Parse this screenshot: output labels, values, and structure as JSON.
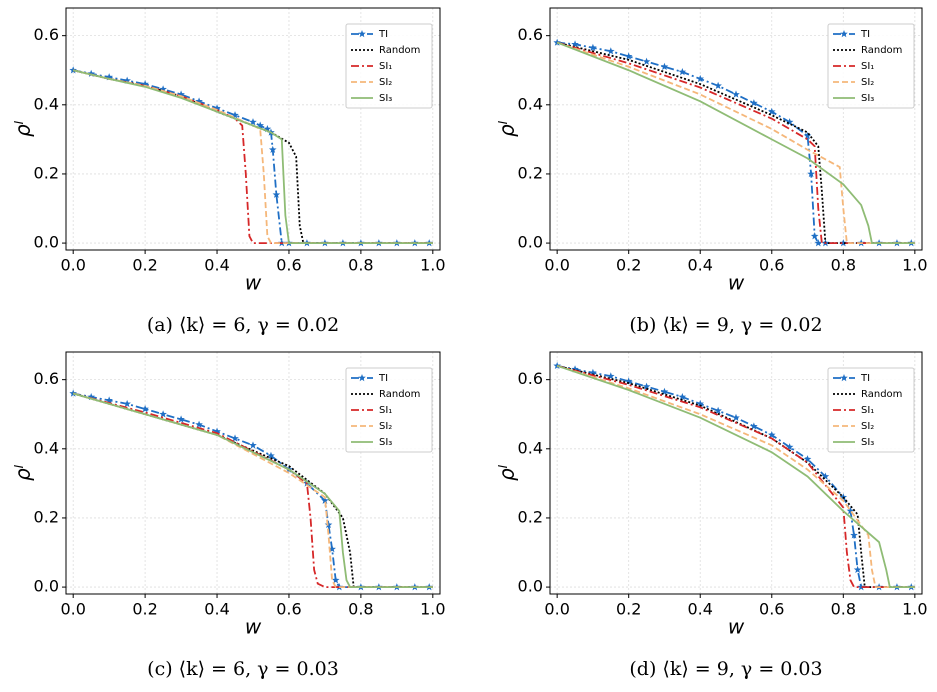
{
  "chart_data": [
    {
      "type": "line",
      "caption": "(a) ⟨k⟩ = 6, γ = 0.02",
      "xlabel": "w",
      "ylabel": "ρˡ",
      "xlim": [
        -0.02,
        1.02
      ],
      "ylim": [
        -0.02,
        0.68
      ],
      "xticks": [
        {
          "value": 0,
          "label": "0.0"
        },
        0.2,
        0.4,
        0.6,
        0.8,
        {
          "value": 1,
          "label": "1.0"
        }
      ],
      "yticks": [
        {
          "value": 0,
          "label": "0.0"
        },
        0.2,
        0.4,
        0.6
      ],
      "grid": true,
      "legend": "upper right",
      "series": [
        {
          "name": "TI",
          "color": "#1f6fc5",
          "style": "dashdot",
          "marker": "star",
          "x": [
            0,
            0.05,
            0.1,
            0.15,
            0.2,
            0.25,
            0.3,
            0.35,
            0.4,
            0.45,
            0.5,
            0.52,
            0.54,
            0.55,
            0.555,
            0.565,
            0.58,
            0.6,
            0.65,
            0.7,
            0.75,
            0.8,
            0.85,
            0.9,
            0.95,
            0.99
          ],
          "values": [
            0.5,
            0.49,
            0.48,
            0.47,
            0.46,
            0.445,
            0.43,
            0.41,
            0.39,
            0.37,
            0.35,
            0.34,
            0.33,
            0.32,
            0.27,
            0.14,
            0,
            0,
            0,
            0,
            0,
            0,
            0,
            0,
            0,
            0
          ]
        },
        {
          "name": "Random",
          "color": "#000000",
          "style": "dotted",
          "x": [
            0,
            0.1,
            0.2,
            0.3,
            0.4,
            0.5,
            0.55,
            0.6,
            0.62,
            0.63,
            0.64,
            1
          ],
          "values": [
            0.5,
            0.475,
            0.455,
            0.425,
            0.38,
            0.34,
            0.32,
            0.29,
            0.25,
            0.05,
            0,
            0
          ]
        },
        {
          "name": "SI₁",
          "color": "#d62728",
          "style": "dashdot",
          "x": [
            0,
            0.1,
            0.2,
            0.3,
            0.4,
            0.45,
            0.47,
            0.48,
            0.49,
            0.5,
            1
          ],
          "values": [
            0.5,
            0.475,
            0.455,
            0.425,
            0.385,
            0.36,
            0.34,
            0.2,
            0.02,
            0,
            0
          ]
        },
        {
          "name": "SI₂",
          "color": "#f5b77a",
          "style": "dashed",
          "x": [
            0,
            0.1,
            0.2,
            0.3,
            0.4,
            0.5,
            0.52,
            0.53,
            0.54,
            0.55,
            1
          ],
          "values": [
            0.5,
            0.475,
            0.455,
            0.425,
            0.385,
            0.34,
            0.33,
            0.2,
            0.02,
            0,
            0
          ]
        },
        {
          "name": "SI₃",
          "color": "#8fbc75",
          "style": "solid",
          "x": [
            0,
            0.1,
            0.2,
            0.3,
            0.4,
            0.5,
            0.55,
            0.58,
            0.59,
            0.6,
            1
          ],
          "values": [
            0.5,
            0.475,
            0.452,
            0.42,
            0.38,
            0.34,
            0.32,
            0.3,
            0.08,
            0,
            0
          ]
        }
      ]
    },
    {
      "type": "line",
      "caption": "(b) ⟨k⟩ = 9, γ = 0.02",
      "xlabel": "w",
      "ylabel": "ρˡ",
      "xlim": [
        -0.02,
        1.02
      ],
      "ylim": [
        -0.02,
        0.68
      ],
      "xticks": [
        {
          "value": 0,
          "label": "0.0"
        },
        0.2,
        0.4,
        0.6,
        0.8,
        {
          "value": 1,
          "label": "1.0"
        }
      ],
      "yticks": [
        {
          "value": 0,
          "label": "0.0"
        },
        0.2,
        0.4,
        0.6
      ],
      "grid": true,
      "legend": "upper right",
      "series": [
        {
          "name": "TI",
          "color": "#1f6fc5",
          "style": "dashdot",
          "marker": "star",
          "x": [
            0,
            0.05,
            0.1,
            0.15,
            0.2,
            0.25,
            0.3,
            0.35,
            0.4,
            0.45,
            0.5,
            0.55,
            0.6,
            0.65,
            0.7,
            0.71,
            0.72,
            0.73,
            0.75,
            0.8,
            0.85,
            0.9,
            0.95,
            0.99
          ],
          "values": [
            0.58,
            0.575,
            0.565,
            0.555,
            0.54,
            0.525,
            0.51,
            0.495,
            0.475,
            0.455,
            0.43,
            0.405,
            0.38,
            0.35,
            0.31,
            0.2,
            0.02,
            0,
            0,
            0,
            0,
            0,
            0,
            0
          ]
        },
        {
          "name": "Random",
          "color": "#000000",
          "style": "dotted",
          "x": [
            0,
            0.2,
            0.4,
            0.6,
            0.7,
            0.73,
            0.74,
            0.75,
            1
          ],
          "values": [
            0.58,
            0.53,
            0.46,
            0.37,
            0.32,
            0.28,
            0.15,
            0,
            0
          ]
        },
        {
          "name": "SI₁",
          "color": "#d62728",
          "style": "dashdot",
          "x": [
            0,
            0.2,
            0.4,
            0.6,
            0.7,
            0.72,
            0.73,
            0.74,
            1
          ],
          "values": [
            0.58,
            0.52,
            0.45,
            0.36,
            0.3,
            0.28,
            0.1,
            0,
            0
          ]
        },
        {
          "name": "SI₂",
          "color": "#f5b77a",
          "style": "dashed",
          "x": [
            0,
            0.2,
            0.4,
            0.6,
            0.7,
            0.79,
            0.8,
            0.81,
            1
          ],
          "values": [
            0.58,
            0.51,
            0.43,
            0.33,
            0.27,
            0.22,
            0.1,
            0,
            0
          ]
        },
        {
          "name": "SI₃",
          "color": "#8fbc75",
          "style": "solid",
          "x": [
            0,
            0.2,
            0.4,
            0.6,
            0.7,
            0.8,
            0.85,
            0.87,
            0.88,
            1
          ],
          "values": [
            0.58,
            0.5,
            0.41,
            0.3,
            0.245,
            0.17,
            0.11,
            0.05,
            0,
            0
          ]
        }
      ]
    },
    {
      "type": "line",
      "caption": "(c) ⟨k⟩ = 6, γ = 0.03",
      "xlabel": "w",
      "ylabel": "ρˡ",
      "xlim": [
        -0.02,
        1.02
      ],
      "ylim": [
        -0.02,
        0.68
      ],
      "xticks": [
        {
          "value": 0,
          "label": "0.0"
        },
        0.2,
        0.4,
        0.6,
        0.8,
        {
          "value": 1,
          "label": "1.0"
        }
      ],
      "yticks": [
        {
          "value": 0,
          "label": "0.0"
        },
        0.2,
        0.4,
        0.6
      ],
      "grid": true,
      "legend": "upper right",
      "series": [
        {
          "name": "TI",
          "color": "#1f6fc5",
          "style": "dashdot",
          "marker": "star",
          "x": [
            0,
            0.05,
            0.1,
            0.15,
            0.2,
            0.25,
            0.3,
            0.35,
            0.4,
            0.45,
            0.5,
            0.55,
            0.6,
            0.65,
            0.7,
            0.71,
            0.72,
            0.73,
            0.74,
            0.8,
            0.85,
            0.9,
            0.95,
            0.99
          ],
          "values": [
            0.56,
            0.55,
            0.54,
            0.53,
            0.515,
            0.5,
            0.485,
            0.47,
            0.45,
            0.43,
            0.41,
            0.38,
            0.34,
            0.3,
            0.25,
            0.18,
            0.11,
            0.02,
            0,
            0,
            0,
            0,
            0,
            0
          ]
        },
        {
          "name": "Random",
          "color": "#000000",
          "style": "dotted",
          "x": [
            0,
            0.2,
            0.4,
            0.6,
            0.7,
            0.75,
            0.77,
            0.78,
            1
          ],
          "values": [
            0.56,
            0.5,
            0.44,
            0.35,
            0.27,
            0.2,
            0.1,
            0,
            0
          ]
        },
        {
          "name": "SI₁",
          "color": "#d62728",
          "style": "dashdot",
          "x": [
            0,
            0.2,
            0.4,
            0.6,
            0.65,
            0.66,
            0.67,
            0.68,
            0.7,
            1
          ],
          "values": [
            0.56,
            0.505,
            0.445,
            0.34,
            0.3,
            0.2,
            0.05,
            0.01,
            0,
            0
          ]
        },
        {
          "name": "SI₂",
          "color": "#f5b77a",
          "style": "dashed",
          "x": [
            0,
            0.2,
            0.4,
            0.6,
            0.7,
            0.71,
            0.72,
            0.73,
            1
          ],
          "values": [
            0.56,
            0.5,
            0.44,
            0.33,
            0.26,
            0.15,
            0.02,
            0,
            0
          ]
        },
        {
          "name": "SI₃",
          "color": "#8fbc75",
          "style": "solid",
          "x": [
            0,
            0.2,
            0.4,
            0.6,
            0.7,
            0.74,
            0.75,
            0.76,
            0.77,
            1
          ],
          "values": [
            0.56,
            0.5,
            0.44,
            0.34,
            0.27,
            0.22,
            0.1,
            0.02,
            0,
            0
          ]
        }
      ]
    },
    {
      "type": "line",
      "caption": "(d) ⟨k⟩ = 9, γ = 0.03",
      "xlabel": "w",
      "ylabel": "ρˡ",
      "xlim": [
        -0.02,
        1.02
      ],
      "ylim": [
        -0.02,
        0.68
      ],
      "xticks": [
        {
          "value": 0,
          "label": "0.0"
        },
        0.2,
        0.4,
        0.6,
        0.8,
        {
          "value": 1,
          "label": "1.0"
        }
      ],
      "yticks": [
        {
          "value": 0,
          "label": "0.0"
        },
        0.2,
        0.4,
        0.6
      ],
      "grid": true,
      "legend": "upper right",
      "series": [
        {
          "name": "TI",
          "color": "#1f6fc5",
          "style": "dashdot",
          "marker": "star",
          "x": [
            0,
            0.05,
            0.1,
            0.15,
            0.2,
            0.25,
            0.3,
            0.35,
            0.4,
            0.45,
            0.5,
            0.55,
            0.6,
            0.65,
            0.7,
            0.75,
            0.8,
            0.82,
            0.83,
            0.84,
            0.85,
            0.9,
            0.95,
            0.99
          ],
          "values": [
            0.64,
            0.63,
            0.62,
            0.61,
            0.595,
            0.58,
            0.565,
            0.55,
            0.53,
            0.51,
            0.49,
            0.465,
            0.44,
            0.405,
            0.37,
            0.32,
            0.26,
            0.22,
            0.15,
            0.05,
            0,
            0,
            0,
            0
          ]
        },
        {
          "name": "Random",
          "color": "#000000",
          "style": "dotted",
          "x": [
            0,
            0.2,
            0.4,
            0.6,
            0.7,
            0.8,
            0.84,
            0.85,
            0.86,
            1
          ],
          "values": [
            0.64,
            0.59,
            0.525,
            0.43,
            0.36,
            0.26,
            0.21,
            0.1,
            0,
            0
          ]
        },
        {
          "name": "SI₁",
          "color": "#d62728",
          "style": "dashdot",
          "x": [
            0,
            0.2,
            0.4,
            0.6,
            0.7,
            0.8,
            0.81,
            0.82,
            0.83,
            1
          ],
          "values": [
            0.64,
            0.585,
            0.52,
            0.43,
            0.36,
            0.23,
            0.1,
            0.02,
            0,
            0
          ]
        },
        {
          "name": "SI₂",
          "color": "#f5b77a",
          "style": "dashed",
          "x": [
            0,
            0.2,
            0.4,
            0.6,
            0.7,
            0.8,
            0.87,
            0.88,
            0.89,
            1
          ],
          "values": [
            0.64,
            0.575,
            0.5,
            0.41,
            0.34,
            0.25,
            0.15,
            0.05,
            0,
            0
          ]
        },
        {
          "name": "SI₃",
          "color": "#8fbc75",
          "style": "solid",
          "x": [
            0,
            0.2,
            0.4,
            0.6,
            0.7,
            0.8,
            0.9,
            0.92,
            0.93,
            1
          ],
          "values": [
            0.64,
            0.57,
            0.49,
            0.39,
            0.32,
            0.22,
            0.13,
            0.05,
            0,
            0
          ]
        }
      ]
    }
  ]
}
